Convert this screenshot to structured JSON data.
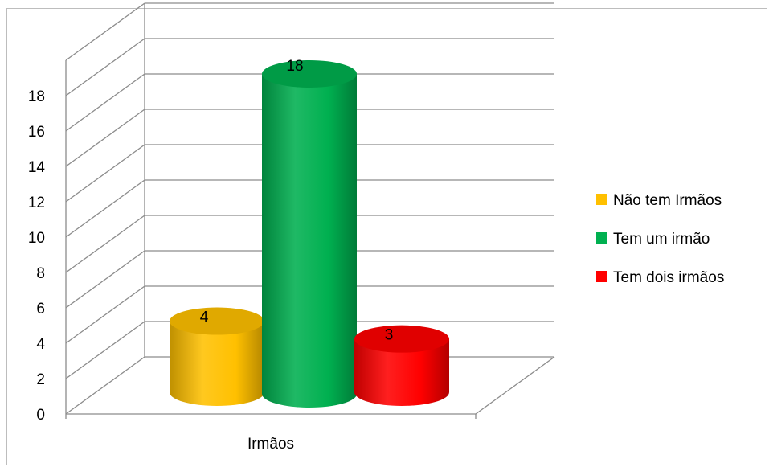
{
  "chart_data": {
    "type": "bar",
    "style": "3d-cylinder",
    "title": "",
    "xlabel": "",
    "ylabel": "",
    "categories": [
      "Irmãos"
    ],
    "ylim": [
      0,
      18
    ],
    "y_ticks": [
      0,
      2,
      4,
      6,
      8,
      10,
      12,
      14,
      16,
      18
    ],
    "grid": true,
    "legend_position": "right",
    "series": [
      {
        "name": "Não tem Irmãos",
        "values": [
          4
        ],
        "color": "#ffc000",
        "label": "4"
      },
      {
        "name": "Tem um irmão",
        "values": [
          18
        ],
        "color": "#00b050",
        "label": "18"
      },
      {
        "name": "Tem dois irmãos",
        "values": [
          3
        ],
        "color": "#ff0000",
        "label": "3"
      }
    ]
  }
}
